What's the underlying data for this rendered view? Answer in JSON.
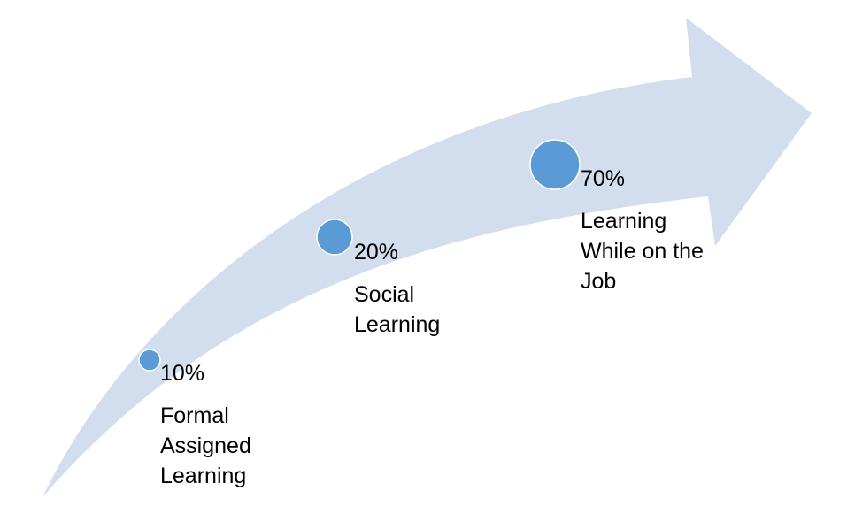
{
  "colors": {
    "arrow_fill": "#d2ddee",
    "marker_fill": "#5b9bd5",
    "marker_stroke": "#ffffff",
    "text": "#000000"
  },
  "stages": [
    {
      "percent": "10%",
      "title": "Formal\nAssigned\nLearning",
      "value": 10
    },
    {
      "percent": "20%",
      "title": "Social\nLearning",
      "value": 20
    },
    {
      "percent": "70%",
      "title": "Learning\nWhile on the\nJob",
      "value": 70
    }
  ]
}
